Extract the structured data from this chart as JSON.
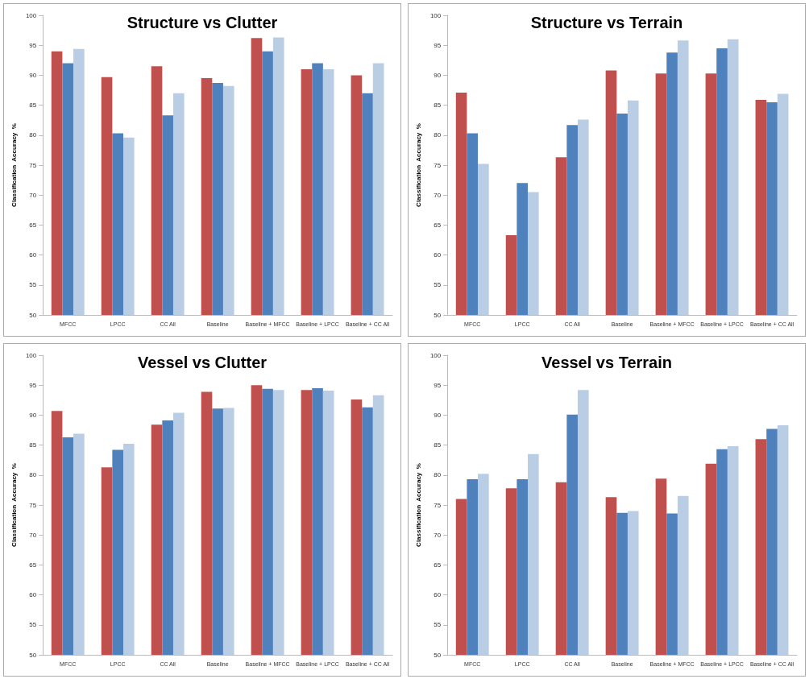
{
  "chart_data": [
    {
      "type": "bar",
      "title": "Structure vs Clutter",
      "ylabel": "Classification  Accuracy  %",
      "categories": [
        "MFCC",
        "LPCC",
        "CC All",
        "Baseline",
        "Baseline + MFCC",
        "Baseline + LPCC",
        "Baseline + CC All"
      ],
      "ylim": [
        50,
        100
      ],
      "yticks": [
        50,
        55,
        60,
        65,
        70,
        75,
        80,
        85,
        90,
        95,
        100
      ],
      "series": [
        {
          "color": "#c0504d",
          "values": [
            94,
            89.7,
            91.5,
            89.5,
            96.2,
            91,
            90
          ]
        },
        {
          "color": "#4f81bd",
          "values": [
            92,
            80.3,
            83.3,
            88.7,
            94,
            92,
            87
          ]
        },
        {
          "color": "#b9cde5",
          "values": [
            94.4,
            79.6,
            87,
            88.2,
            96.3,
            91,
            92
          ]
        }
      ]
    },
    {
      "type": "bar",
      "title": "Structure vs Terrain",
      "ylabel": "Classification  Accuracy  %",
      "categories": [
        "MFCC",
        "LPCC",
        "CC All",
        "Baseline",
        "Baseline + MFCC",
        "Baseline + LPCC",
        "Baseline + CC All"
      ],
      "ylim": [
        50,
        100
      ],
      "yticks": [
        50,
        55,
        60,
        65,
        70,
        75,
        80,
        85,
        90,
        95,
        100
      ],
      "series": [
        {
          "color": "#c0504d",
          "values": [
            87.1,
            63.3,
            76.3,
            90.8,
            90.3,
            90.3,
            85.9
          ]
        },
        {
          "color": "#4f81bd",
          "values": [
            80.3,
            72,
            81.7,
            83.6,
            93.8,
            94.5,
            85.5
          ]
        },
        {
          "color": "#b9cde5",
          "values": [
            75.2,
            70.5,
            82.6,
            85.8,
            95.8,
            96,
            86.9
          ]
        }
      ]
    },
    {
      "type": "bar",
      "title": "Vessel vs Clutter",
      "ylabel": "Classification  Accuracy  %",
      "categories": [
        "MFCC",
        "LPCC",
        "CC All",
        "Baseline",
        "Baseline + MFCC",
        "Baseline + LPCC",
        "Baseline + CC All"
      ],
      "ylim": [
        50,
        100
      ],
      "yticks": [
        50,
        55,
        60,
        65,
        70,
        75,
        80,
        85,
        90,
        95,
        100
      ],
      "series": [
        {
          "color": "#c0504d",
          "values": [
            90.7,
            81.3,
            88.4,
            93.9,
            95,
            94.2,
            92.6
          ]
        },
        {
          "color": "#4f81bd",
          "values": [
            86.3,
            84.2,
            89.1,
            91.1,
            94.4,
            94.5,
            91.3
          ]
        },
        {
          "color": "#b9cde5",
          "values": [
            86.9,
            85.2,
            90.4,
            91.2,
            94.2,
            94.1,
            93.3
          ]
        }
      ]
    },
    {
      "type": "bar",
      "title": "Vessel vs Terrain",
      "ylabel": "Classification  Accuracy  %",
      "categories": [
        "MFCC",
        "LPCC",
        "CC All",
        "Baseline",
        "Baseline + MFCC",
        "Baseline + LPCC",
        "Baseline + CC All"
      ],
      "ylim": [
        50,
        100
      ],
      "yticks": [
        50,
        55,
        60,
        65,
        70,
        75,
        80,
        85,
        90,
        95,
        100
      ],
      "series": [
        {
          "color": "#c0504d",
          "values": [
            76,
            77.8,
            78.8,
            76.3,
            79.4,
            81.9,
            86
          ]
        },
        {
          "color": "#4f81bd",
          "values": [
            79.3,
            79.3,
            90.1,
            73.7,
            73.6,
            84.3,
            87.7
          ]
        },
        {
          "color": "#b9cde5",
          "values": [
            80.2,
            83.5,
            94.2,
            74,
            76.5,
            84.8,
            88.3
          ]
        }
      ]
    }
  ]
}
